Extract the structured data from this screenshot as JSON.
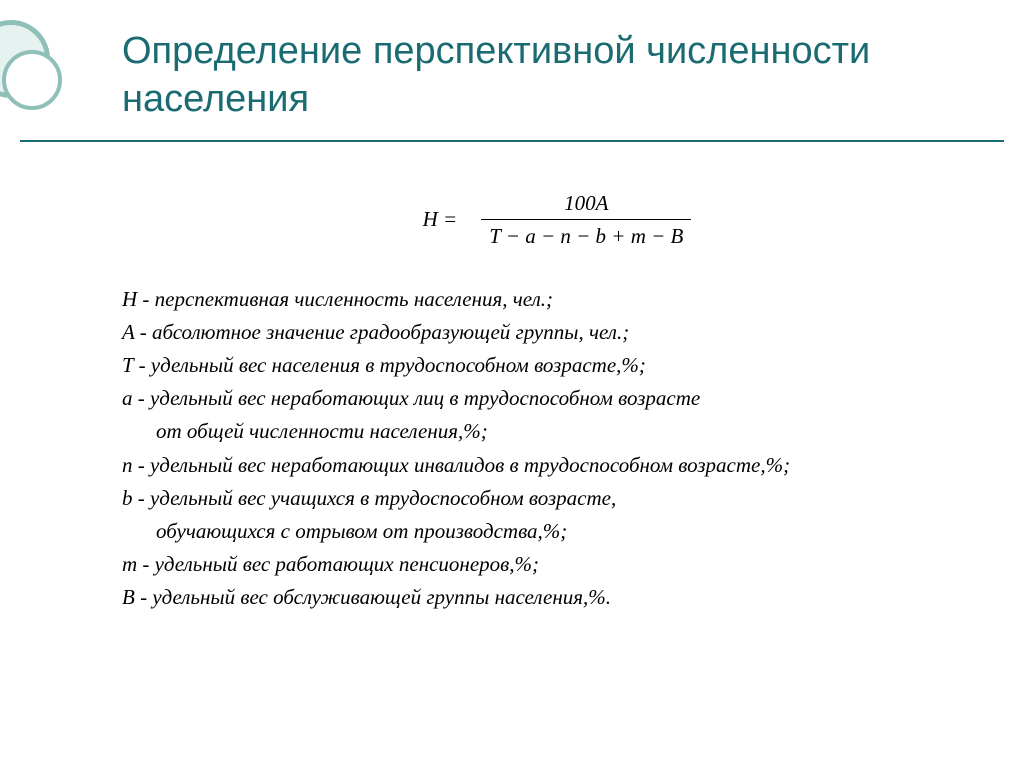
{
  "colors": {
    "title": "#1b6b72",
    "rule": "#1b6b72",
    "ring_stroke": "#8fbfb9",
    "ring_fill": "#e5f2f0",
    "text": "#000000",
    "background": "#ffffff"
  },
  "title": "Определение перспективной численности населения",
  "formula": {
    "lhs": "H =",
    "numerator": "100A",
    "denominator": "T − a − n − b + m − B"
  },
  "definitions": [
    {
      "sym": "H",
      "text": " - перспективная численность населения, чел.;"
    },
    {
      "sym": "A",
      "text": " - абсолютное значение градообразующей группы, чел.;"
    },
    {
      "sym": "T",
      "text": " - удельный вес населения в трудоспособном возрасте,%;"
    },
    {
      "sym": "a",
      "text": " - удельный вес неработающих лиц  в трудоспособном возрасте",
      "cont": "от общей численности населения,%;"
    },
    {
      "sym": "n",
      "text": " - удельный вес неработающих инвалидов в трудоспособном возрасте,%;"
    },
    {
      "sym": "b",
      "text": " - удельный вес учащихся в трудоспособном возрасте,",
      "cont": "обучающихся с отрывом от производства,%;"
    },
    {
      "sym": "m",
      "text": " - удельный вес работающих пенсионеров,%;"
    },
    {
      "sym": "B",
      "text": " - удельный вес обслуживающей группы населения,%."
    }
  ]
}
